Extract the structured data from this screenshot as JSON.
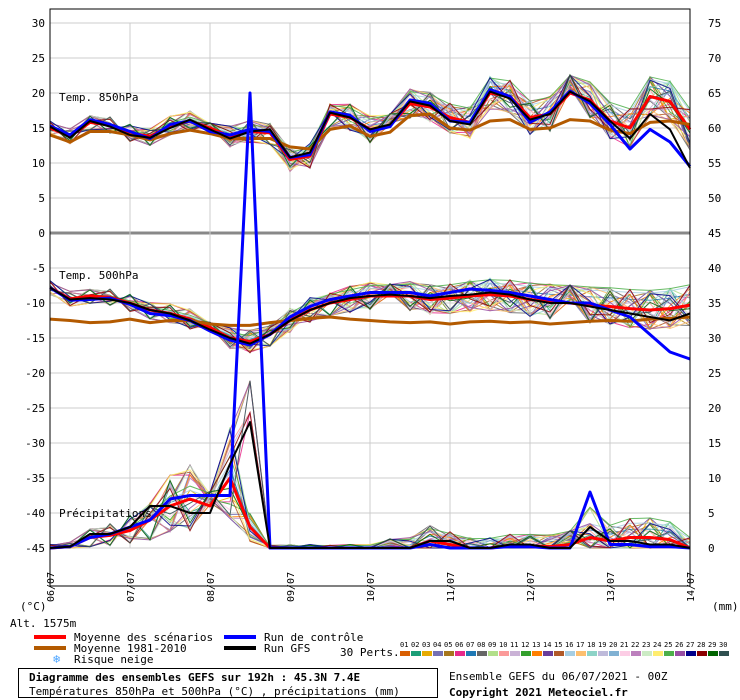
{
  "chart_data": {
    "type": "line",
    "title": "Diagramme des ensembles GEFS sur 192h : 45.3N 7.4E",
    "subtitle": "Températures 850hPa et 500hPa (°C) , précipitations (mm)",
    "left_axis": {
      "label": "(°C)",
      "range": [
        -45,
        30
      ],
      "ticks": [
        30,
        25,
        20,
        15,
        10,
        5,
        0,
        -5,
        -10,
        -15,
        -20,
        -25,
        -30,
        -35,
        -40,
        -45
      ]
    },
    "right_axis": {
      "label": "(mm)",
      "range": [
        0,
        75
      ],
      "ticks": [
        75,
        70,
        65,
        60,
        55,
        50,
        45,
        40,
        35,
        30,
        25,
        20,
        15,
        10,
        5,
        0
      ]
    },
    "x_axis": {
      "range": [
        0,
        192
      ],
      "ticks": [
        {
          "label": "06/07",
          "hour": 0
        },
        {
          "label": "07/07",
          "hour": 24
        },
        {
          "label": "08/07",
          "hour": 48
        },
        {
          "label": "09/07",
          "hour": 72
        },
        {
          "label": "10/07",
          "hour": 96
        },
        {
          "label": "11/07",
          "hour": 120
        },
        {
          "label": "12/07",
          "hour": 144
        },
        {
          "label": "13/07",
          "hour": 168
        },
        {
          "label": "14/07",
          "hour": 192
        }
      ]
    },
    "altitude_label": "Alt. 1575m",
    "panel_labels": {
      "t850": "Temp. 850hPa",
      "t500": "Temp. 500hPa",
      "precip": "Précipitations"
    },
    "grid": true,
    "step_hours": 6,
    "series": [
      {
        "name": "Moyenne des scénarios",
        "color": "#ff0000",
        "panel": "t850",
        "values": [
          15,
          13.8,
          15.8,
          15.4,
          14.3,
          13.8,
          15.3,
          16,
          15,
          13.8,
          14.5,
          14.3,
          10.5,
          11,
          17,
          16.5,
          14.8,
          15.3,
          18.5,
          18,
          16.5,
          15.8,
          20,
          19.5,
          16.5,
          17,
          20,
          19,
          16,
          15,
          19.5,
          18.8,
          14.8
        ]
      },
      {
        "name": "Moyenne 1981-2010",
        "color": "#b35a00",
        "panel": "t850",
        "values": [
          14,
          13,
          14.5,
          14.5,
          14,
          13.3,
          14.2,
          14.7,
          14.2,
          13.5,
          13.5,
          13.5,
          12.3,
          12,
          14.8,
          15.3,
          13.8,
          14.4,
          16.8,
          17,
          15,
          14.7,
          16,
          16.2,
          14.8,
          15,
          16.2,
          16,
          14.7,
          14.2,
          15.8,
          16,
          15.5
        ]
      },
      {
        "name": "Run de contrôle",
        "color": "#0000ff",
        "panel": "t850",
        "values": [
          15.3,
          14,
          16.2,
          15.5,
          14.5,
          13.5,
          15.5,
          16,
          14.5,
          14,
          14.8,
          14.5,
          10.8,
          11.2,
          17.3,
          16.8,
          14.5,
          15.2,
          19,
          18.5,
          16,
          15.8,
          20.5,
          19.5,
          15.8,
          17.3,
          20.3,
          18.5,
          15.5,
          12,
          14.8,
          13,
          9.5
        ]
      },
      {
        "name": "Run GFS",
        "color": "#000000",
        "panel": "t850",
        "values": [
          15.2,
          13.6,
          16,
          15.2,
          14,
          13.6,
          15,
          16.2,
          14.8,
          13.5,
          14.5,
          14.8,
          10.8,
          11.5,
          17.2,
          16.5,
          14.8,
          15.5,
          18.8,
          18.2,
          16,
          15.5,
          20.2,
          19.2,
          16.2,
          17,
          20.2,
          18.8,
          16,
          13.5,
          17,
          14.8,
          9.3
        ]
      },
      {
        "name": "Moyenne des scénarios",
        "color": "#ff0000",
        "panel": "t500",
        "values": [
          -7.8,
          -9.4,
          -9,
          -9.2,
          -10,
          -11,
          -11.5,
          -12.3,
          -13.5,
          -15,
          -15.5,
          -14.5,
          -12.5,
          -11,
          -10,
          -9.5,
          -9,
          -9,
          -9,
          -9.5,
          -9.3,
          -9,
          -8.8,
          -9,
          -9.5,
          -9.8,
          -10,
          -10.3,
          -10.5,
          -10.8,
          -11,
          -10.8,
          -10.3
        ]
      },
      {
        "name": "Moyenne 1981-2010",
        "color": "#b35a00",
        "panel": "t500",
        "values": [
          -12.3,
          -12.5,
          -12.8,
          -12.7,
          -12.3,
          -12.8,
          -12.5,
          -12.5,
          -13,
          -13.2,
          -13.2,
          -12.8,
          -12.5,
          -12.2,
          -12,
          -12.3,
          -12.5,
          -12.7,
          -12.8,
          -12.7,
          -13,
          -12.7,
          -12.6,
          -12.8,
          -12.7,
          -13,
          -12.8,
          -12.6,
          -12.5,
          -12.6,
          -12.3,
          -12.2,
          -12
        ]
      },
      {
        "name": "Run de contrôle",
        "color": "#0000ff",
        "panel": "t500",
        "values": [
          -7.8,
          -9.6,
          -9.5,
          -9.3,
          -10.2,
          -11.5,
          -11.8,
          -12.5,
          -14,
          -15.3,
          -16,
          -14.5,
          -12,
          -10.5,
          -9.5,
          -9,
          -8.5,
          -8.5,
          -8.5,
          -9,
          -8.5,
          -8,
          -8.2,
          -8.5,
          -9,
          -9.5,
          -10,
          -10,
          -11,
          -12,
          -14.5,
          -17,
          -18
        ]
      },
      {
        "name": "Run GFS",
        "color": "#000000",
        "panel": "t500",
        "values": [
          -7.8,
          -9.5,
          -9.3,
          -9.5,
          -10,
          -11,
          -11.5,
          -12.5,
          -13.8,
          -15,
          -15.8,
          -14.5,
          -12.5,
          -11,
          -10,
          -9.3,
          -9,
          -8.8,
          -9,
          -9.3,
          -9,
          -8.8,
          -8.5,
          -8.8,
          -9.5,
          -10,
          -10,
          -10.5,
          -11,
          -11.5,
          -12,
          -12.5,
          -11.5
        ]
      },
      {
        "name": "Moyenne des scénarios",
        "color": "#ff0000",
        "panel": "precip",
        "values": [
          0,
          0.2,
          1.5,
          1.8,
          2.5,
          4,
          6,
          7,
          6,
          10,
          3,
          0,
          0,
          0,
          0,
          0,
          0,
          0,
          0,
          1,
          0.5,
          0,
          0,
          0.3,
          0.3,
          0.2,
          0.5,
          1.5,
          1,
          1.5,
          1.5,
          1.2,
          0
        ]
      },
      {
        "name": "Run de contrôle",
        "color": "#0000ff",
        "panel": "precip",
        "values": [
          0,
          0.2,
          1.5,
          2,
          3,
          4,
          7,
          7.5,
          7.5,
          7.5,
          65,
          0,
          0,
          0,
          0,
          0,
          0,
          0,
          0,
          0.5,
          0,
          0,
          0,
          0.2,
          0.2,
          0,
          0,
          8,
          0.5,
          0.5,
          0.2,
          0.2,
          0
        ]
      },
      {
        "name": "Run GFS",
        "color": "#000000",
        "panel": "precip",
        "values": [
          0,
          0.2,
          2,
          2,
          3,
          6,
          6,
          5,
          5,
          12,
          18,
          0,
          0,
          0,
          0,
          0,
          0,
          0,
          0,
          1,
          1,
          0,
          0,
          0.5,
          0.5,
          0,
          0,
          3,
          1,
          1,
          0.5,
          0.5,
          0
        ]
      }
    ],
    "perturbations_legend": {
      "label": "30 Perts.",
      "numbers": [
        "01",
        "02",
        "03",
        "04",
        "05",
        "06",
        "07",
        "08",
        "09",
        "10",
        "11",
        "12",
        "13",
        "14",
        "15",
        "16",
        "17",
        "18",
        "19",
        "20",
        "21",
        "22",
        "23",
        "24",
        "25",
        "26",
        "27",
        "28",
        "29",
        "30"
      ],
      "colors": [
        "#d95f02",
        "#1b9e77",
        "#e6ab02",
        "#7570b3",
        "#a6761d",
        "#e7298a",
        "#1f78b4",
        "#666666",
        "#b2df8a",
        "#fb9a99",
        "#cab2d6",
        "#33a02c",
        "#ff7f00",
        "#6a3d9a",
        "#b15928",
        "#a6cee3",
        "#fdbf6f",
        "#8dd3c7",
        "#bebada",
        "#80b1d3",
        "#fccde5",
        "#bc80bd",
        "#ccebc5",
        "#ffed6f",
        "#4daf4a",
        "#984ea3",
        "#00008b",
        "#8b0000",
        "#006400",
        "#2f4f4f"
      ]
    }
  },
  "legend": {
    "items": [
      {
        "label": "Moyenne des scénarios",
        "color": "#ff0000"
      },
      {
        "label": "Moyenne 1981-2010",
        "color": "#b35a00"
      },
      {
        "label": "Run de contrôle",
        "color": "#0000ff"
      },
      {
        "label": "Run GFS",
        "color": "#000000"
      }
    ],
    "snow_label": "Risque neige"
  },
  "footer": {
    "run_info": "Ensemble GEFS du 06/07/2021 - 00Z",
    "copyright": "Copyright 2021 Meteociel.fr"
  }
}
